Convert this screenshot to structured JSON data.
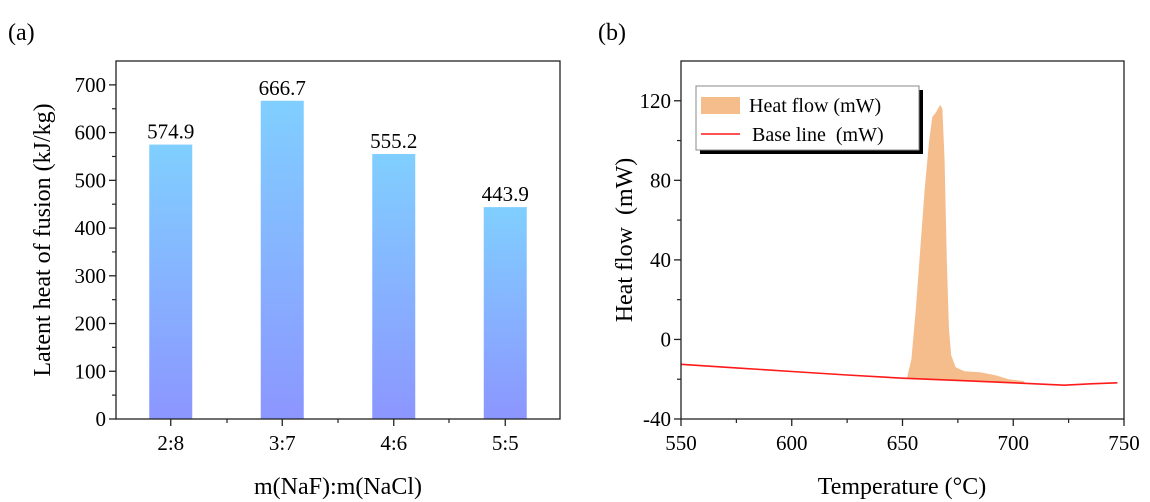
{
  "chart_data": [
    {
      "panel": "(a)",
      "type": "bar",
      "title": "",
      "categories": [
        "2:8",
        "3:7",
        "4:6",
        "5:5"
      ],
      "values": [
        574.9,
        666.7,
        555.2,
        443.9
      ],
      "value_labels": [
        "574.9",
        "666.7",
        "555.2",
        "443.9"
      ],
      "xlabel": "m(NaF):m(NaCl)",
      "ylabel": "Latent heat of fusion (kJ/kg)",
      "ylim": [
        0,
        750
      ],
      "yticks": [
        0,
        100,
        200,
        300,
        400,
        500,
        600,
        700
      ],
      "ytick_labels": [
        "0",
        "100",
        "200",
        "300",
        "400",
        "500",
        "600",
        "700"
      ],
      "grid": false,
      "bar_gradient": {
        "top": "#80CFFF",
        "bottom": "#8C96FF"
      }
    },
    {
      "panel": "(b)",
      "type": "area",
      "title": "",
      "xlabel": "Temperature (°C)",
      "ylabel": "Heat flow  (mW)",
      "xlim": [
        550,
        750
      ],
      "ylim": [
        -40,
        140
      ],
      "xticks": [
        550,
        600,
        650,
        700,
        750
      ],
      "xtick_labels": [
        "550",
        "600",
        "650",
        "700",
        "750"
      ],
      "yticks": [
        -40,
        0,
        40,
        80,
        120
      ],
      "ytick_labels": [
        "-40",
        "0",
        "40",
        "80",
        "120"
      ],
      "grid": false,
      "legend": {
        "position": "top-left",
        "entries": [
          "Heat flow (mW)",
          "Base line  (mW)"
        ]
      },
      "series": [
        {
          "name": "Heat flow (mW)",
          "kind": "filled-area-over-baseline",
          "color": "#F5BD8C",
          "x": [
            652,
            654,
            656,
            658,
            660,
            662,
            663.5,
            665,
            666,
            667,
            668,
            669,
            670,
            671,
            672,
            674,
            678,
            685,
            692,
            698,
            705
          ],
          "y": [
            -19.5,
            -10,
            15,
            45,
            75,
            100,
            112,
            114,
            116,
            118,
            116,
            90,
            40,
            5,
            -8,
            -14,
            -16,
            -16.5,
            -18,
            -20,
            -21
          ]
        },
        {
          "name": "Base line  (mW)",
          "kind": "line",
          "color": "#FF1A1A",
          "x": [
            550,
            575,
            600,
            625,
            650,
            675,
            700,
            723,
            735,
            747
          ],
          "y": [
            -12.5,
            -14.3,
            -16.1,
            -17.9,
            -19.5,
            -20.6,
            -21.8,
            -23,
            -22.3,
            -21.8
          ]
        }
      ]
    }
  ]
}
